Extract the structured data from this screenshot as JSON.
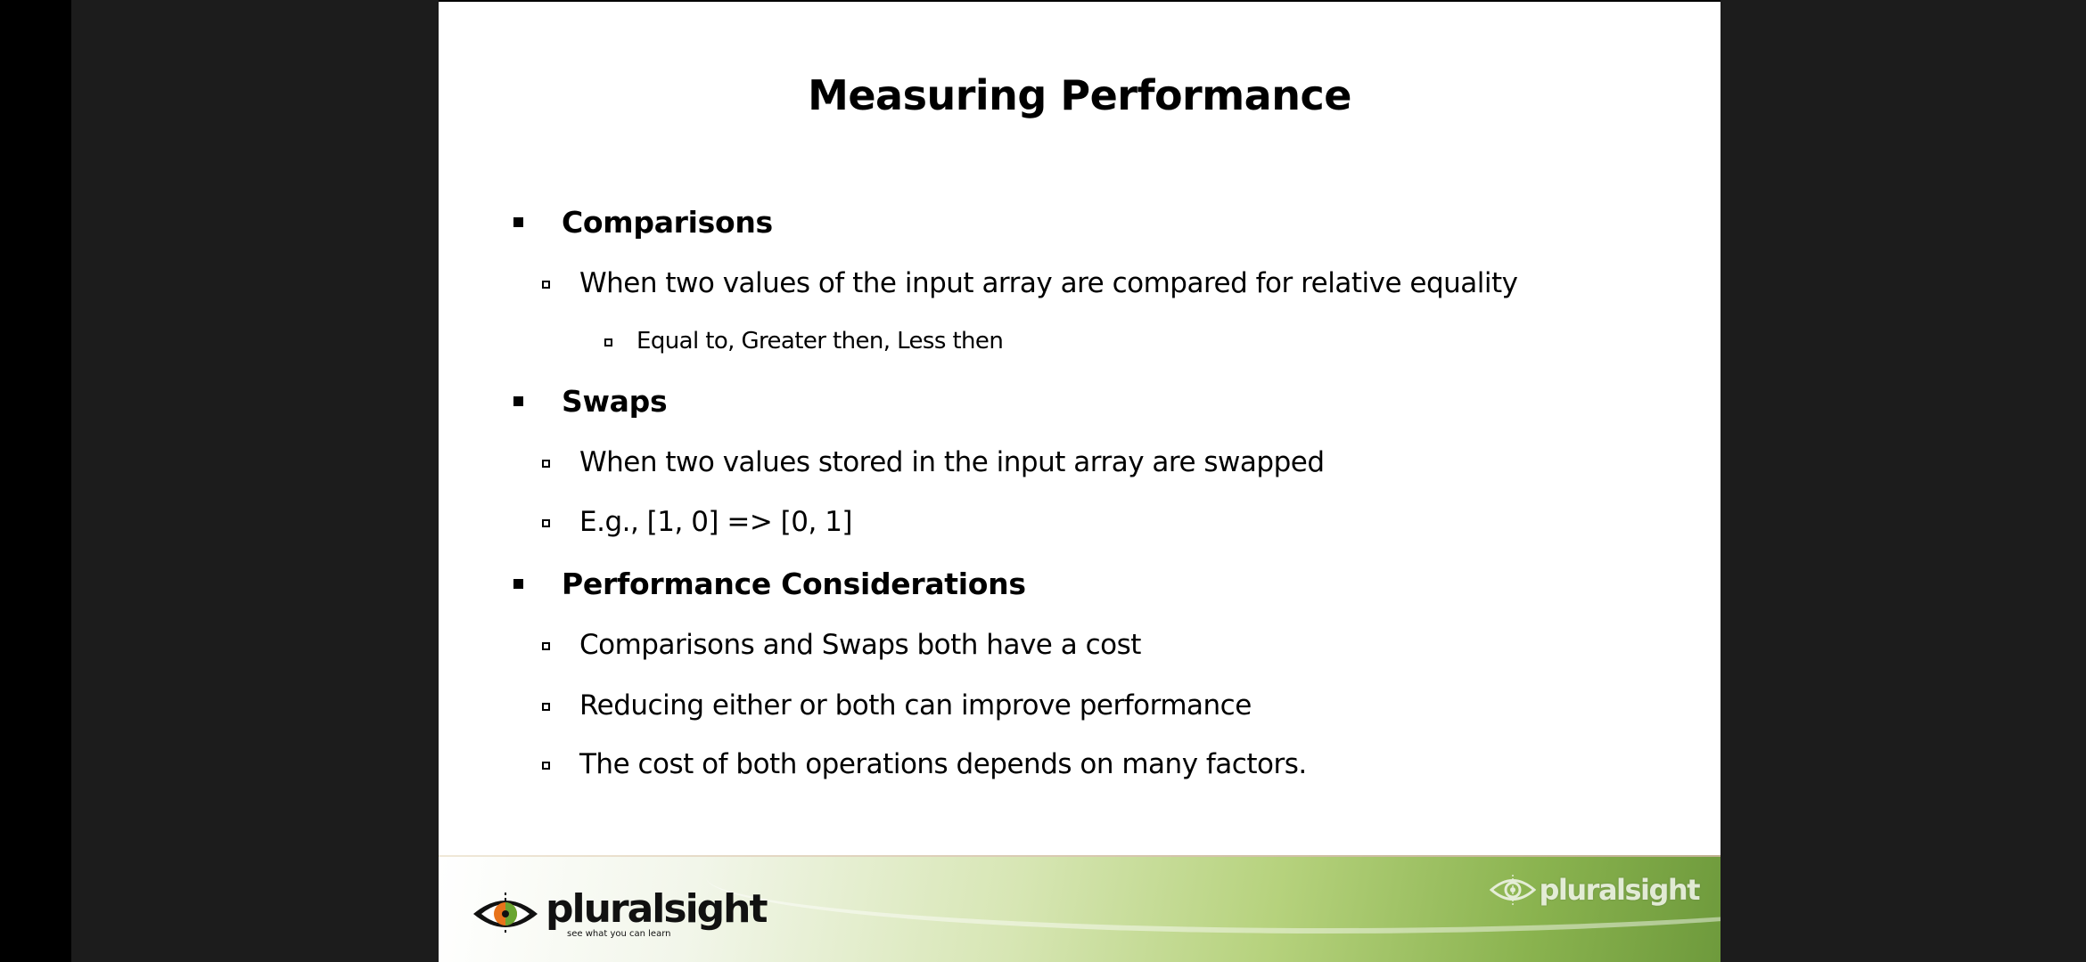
{
  "slide": {
    "title": "Measuring Performance",
    "sections": [
      {
        "heading": "Comparisons",
        "items": [
          {
            "text": "When two values of the input array are compared for relative equality",
            "subitems": [
              "Equal to, Greater then, Less then"
            ]
          }
        ]
      },
      {
        "heading": "Swaps",
        "items": [
          {
            "text": "When two values stored in the input array are swapped",
            "subitems": []
          },
          {
            "text": "E.g., [1, 0] => [0, 1]",
            "subitems": []
          }
        ]
      },
      {
        "heading": "Performance Considerations",
        "items": [
          {
            "text": "Comparisons and Swaps both have a cost",
            "subitems": []
          },
          {
            "text": "Reducing either or both can improve performance",
            "subitems": []
          },
          {
            "text": "The cost of both operations depends on many factors.",
            "subitems": []
          }
        ]
      }
    ]
  },
  "footer": {
    "logo_text": "pluralsight",
    "logo_tagline": "see what you can learn",
    "corner_logo_text": "pluralsight",
    "logo_icon": "eye-icon",
    "colors": {
      "eye_orange": "#e8731c",
      "eye_green": "#6aa532",
      "footer_green": "#8ab34f"
    }
  }
}
